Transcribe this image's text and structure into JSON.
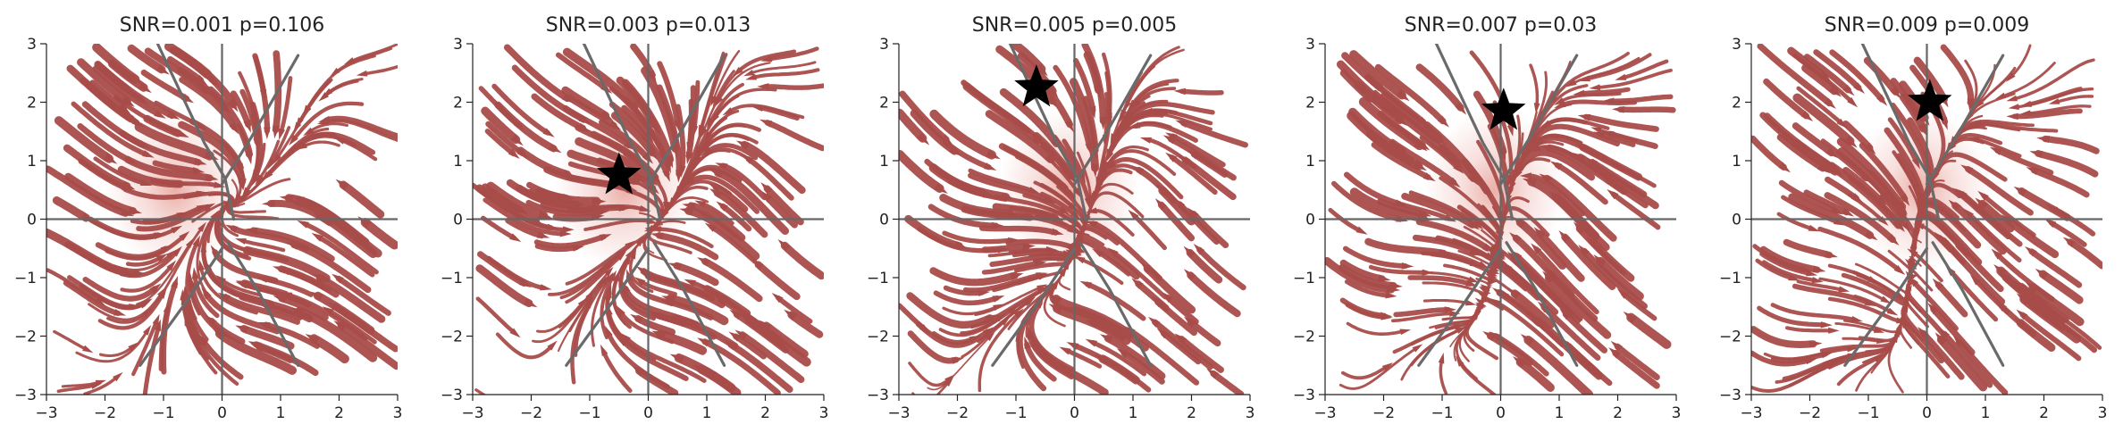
{
  "figure": {
    "panels": [
      {
        "title": "SNR=0.001 p=0.106",
        "snr": 0.001,
        "p": 0.106,
        "fixed_point": null
      },
      {
        "title": "SNR=0.003 p=0.013",
        "snr": 0.003,
        "p": 0.013,
        "fixed_point": [
          -0.5,
          0.75
        ]
      },
      {
        "title": "SNR=0.005 p=0.005",
        "snr": 0.005,
        "p": 0.005,
        "fixed_point": [
          -0.65,
          2.25
        ]
      },
      {
        "title": "SNR=0.007 p=0.03",
        "snr": 0.007,
        "p": 0.03,
        "fixed_point": [
          0.05,
          1.85
        ]
      },
      {
        "title": "SNR=0.009 p=0.009",
        "snr": 0.009,
        "p": 0.009,
        "fixed_point": [
          0.05,
          2.0
        ]
      }
    ],
    "x_ticks": [
      "−3",
      "−2",
      "−1",
      "0",
      "1",
      "2",
      "3"
    ],
    "y_ticks": [
      "3",
      "2",
      "1",
      "0",
      "−1",
      "−2",
      "−3"
    ],
    "colors": {
      "stream": "#a84c4a",
      "density": "#e8a29a",
      "nullcline": "#6a6a6a",
      "fixed_point_marker": "#000000"
    }
  },
  "chart_data": [
    {
      "type": "streamplot",
      "title": "SNR=0.001 p=0.106",
      "xlim": [
        -3,
        3
      ],
      "ylim": [
        -3,
        3
      ],
      "fixed_point": null,
      "marker": "star",
      "grid": false
    },
    {
      "type": "streamplot",
      "title": "SNR=0.003 p=0.013",
      "xlim": [
        -3,
        3
      ],
      "ylim": [
        -3,
        3
      ],
      "fixed_point": {
        "x": -0.5,
        "y": 0.75
      },
      "marker": "star",
      "grid": false
    },
    {
      "type": "streamplot",
      "title": "SNR=0.005 p=0.005",
      "xlim": [
        -3,
        3
      ],
      "ylim": [
        -3,
        3
      ],
      "fixed_point": {
        "x": -0.65,
        "y": 2.25
      },
      "marker": "star",
      "grid": false
    },
    {
      "type": "streamplot",
      "title": "SNR=0.007 p=0.03",
      "xlim": [
        -3,
        3
      ],
      "ylim": [
        -3,
        3
      ],
      "fixed_point": {
        "x": 0.05,
        "y": 1.85
      },
      "marker": "star",
      "grid": false
    },
    {
      "type": "streamplot",
      "title": "SNR=0.009 p=0.009",
      "xlim": [
        -3,
        3
      ],
      "ylim": [
        -3,
        3
      ],
      "fixed_point": {
        "x": 0.05,
        "y": 2.0
      },
      "marker": "star",
      "grid": false
    }
  ]
}
